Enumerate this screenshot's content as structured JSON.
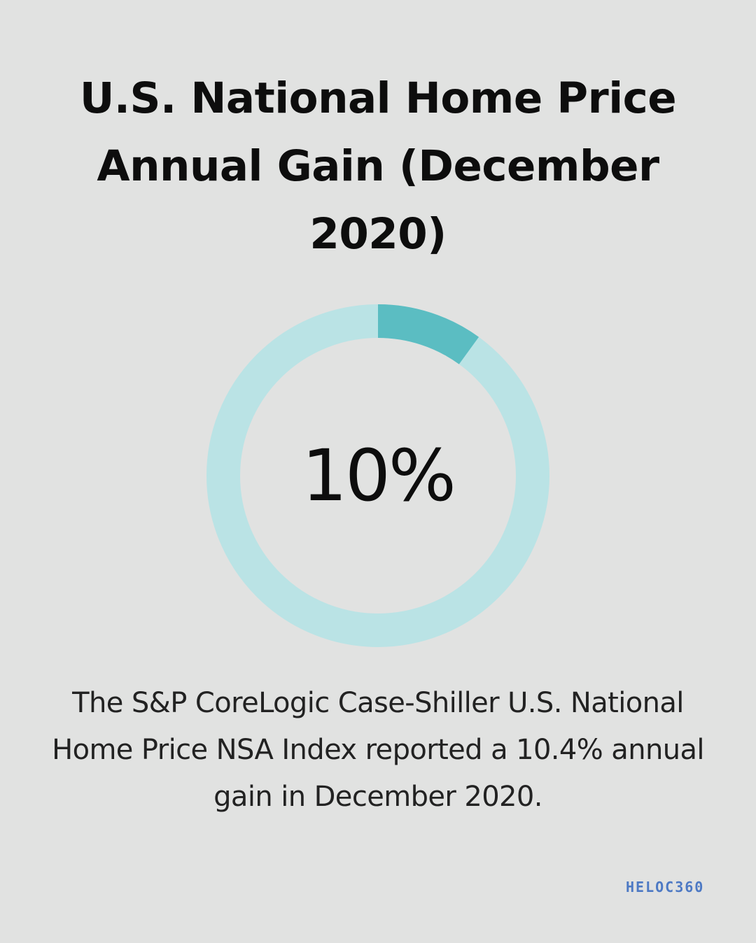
{
  "title": "U.S. National Home Price Annual Gain (December 2020)",
  "chart_data": {
    "type": "pie",
    "variant": "donut",
    "value_percent": 10,
    "center_label": "10%",
    "colors": {
      "value": "#5bbdc2",
      "track": "#bae3e5",
      "background": "#e1e2e1"
    }
  },
  "description": "The S&P CoreLogic Case-Shiller U.S. National Home Price NSA Index reported a 10.4% annual gain in December 2020.",
  "logo": {
    "text": "HELOC360",
    "color": "#4d79c4"
  }
}
